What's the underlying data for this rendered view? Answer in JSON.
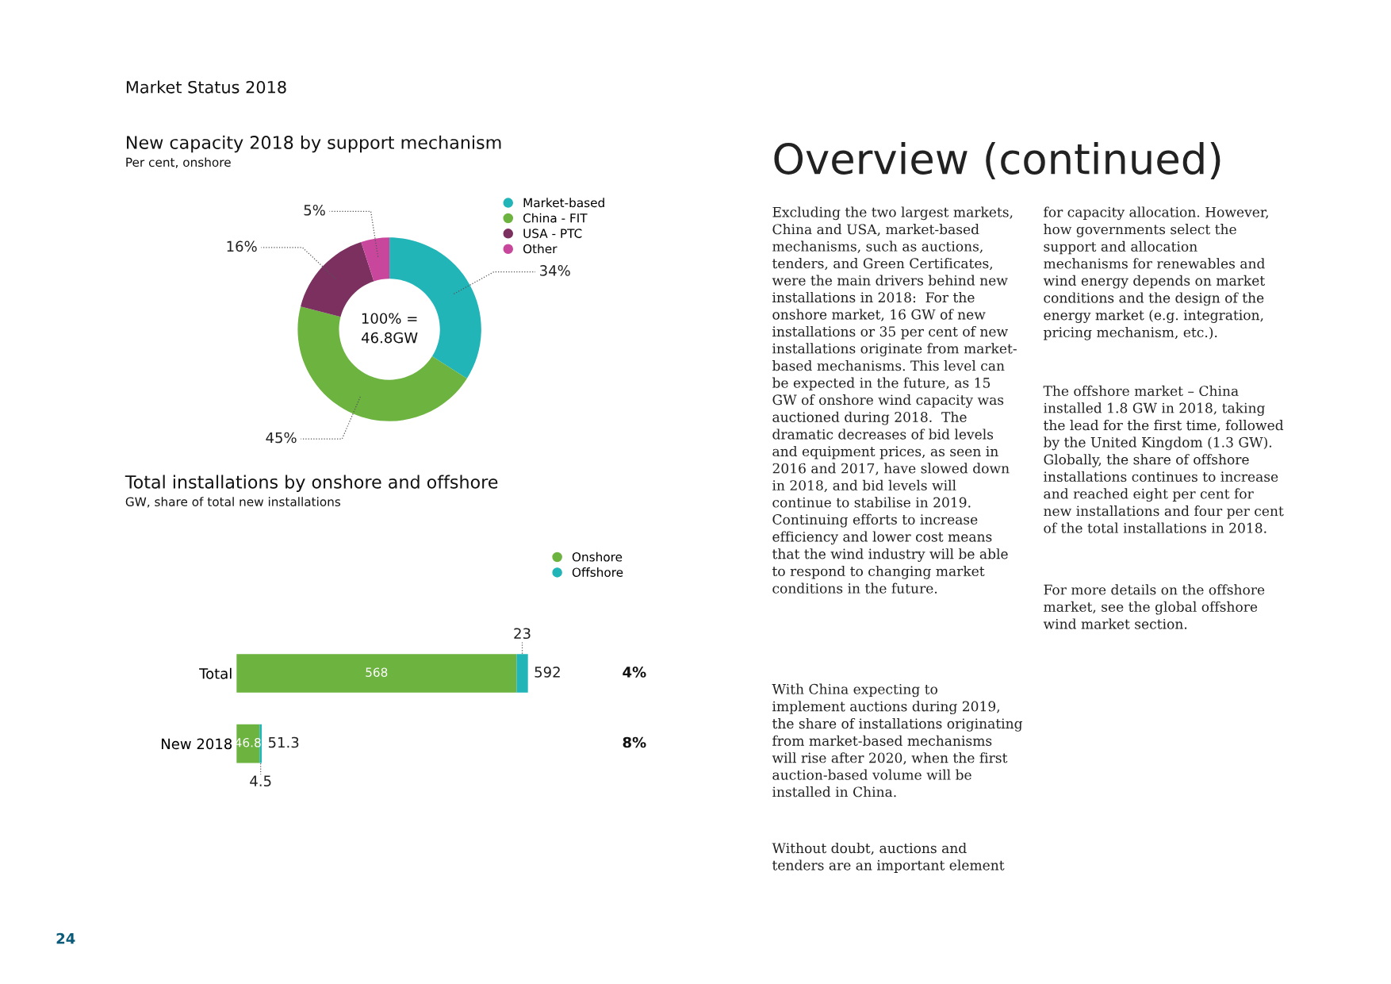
{
  "chart_data": [
    {
      "type": "donut",
      "title": "New capacity 2018 by support mechanism",
      "subtitle": "Per cent, onshore",
      "categories": [
        "Market-based",
        "China - FIT",
        "USA - PTC",
        "Other"
      ],
      "values": [
        34,
        45,
        16,
        5
      ],
      "colors": [
        "#22b5b8",
        "#6db33f",
        "#7b3060",
        "#c8479c"
      ],
      "value_labels": [
        "34%",
        "45%",
        "16%",
        "5%"
      ],
      "annotations": [
        "100% =\n46.8GW"
      ],
      "legend": "top right"
    },
    {
      "type": "bar",
      "orientation": "horizontal",
      "stacked": true,
      "title": "Total installations by onshore and offshore",
      "subtitle": "GW, share of total new installations",
      "categories": [
        "Total",
        "New 2018"
      ],
      "series": [
        {
          "name": "Onshore",
          "color": "#6db33f",
          "values": [
            568,
            46.8
          ]
        },
        {
          "name": "Offshore",
          "color": "#22b5b8",
          "values": [
            23,
            4.5
          ]
        }
      ],
      "tick_labels": "y",
      "data_labels": true,
      "totals": [
        "592",
        "51.3"
      ],
      "annotations": [
        "4%",
        "8%"
      ],
      "legend": "top right"
    },
    {
      "type": "other",
      "title": "Overview (continued)",
      "annotations": [
        "Market Status 2018",
        "24",
        "Excluding the two largest markets,\nChina and USA, market-based\nmechanisms, such as auctions,\ntenders, and Green Certificates,\nwere the main drivers behind new\ninstallations in 2018:  For the\nonshore market, 16 GW of new\ninstallations or 35 per cent of new\ninstallations originate from market-\nbased mechanisms. This level can\nbe expected in the future, as 15\nGW of onshore wind capacity was\nauctioned during 2018.  The\ndramatic decreases of bid levels\nand equipment prices, as seen in\n2016 and 2017, have slowed down\nin 2018, and bid levels will\ncontinue to stabilise in 2019.\nContinuing efforts to increase\nefficiency and lower cost means\nthat the wind industry will be able\nto respond to changing market\nconditions in the future.",
        "With China expecting to\nimplement auctions during 2019,\nthe share of installations originating\nfrom market-based mechanisms\nwill rise after 2020, when the first\nauction-based volume will be\ninstalled in China.",
        "Without doubt, auctions and\ntenders are an important element",
        "for capacity allocation. However,\nhow governments select the\nsupport and allocation\nmechanisms for renewables and\nwind energy depends on market\nconditions and the design of the\nenergy market (e.g. integration,\npricing mechanism, etc.).",
        "The offshore market – China\ninstalled 1.8 GW in 2018, taking\nthe lead for the first time, followed\nby the United Kingdom (1.3 GW).\nGlobally, the share of offshore\ninstallations continues to increase\nand reached eight per cent for\nnew installations and four per cent\nof the total installations in 2018.",
        "For more details on the offshore\nmarket, see the global offshore\nwind market section."
      ]
    }
  ]
}
